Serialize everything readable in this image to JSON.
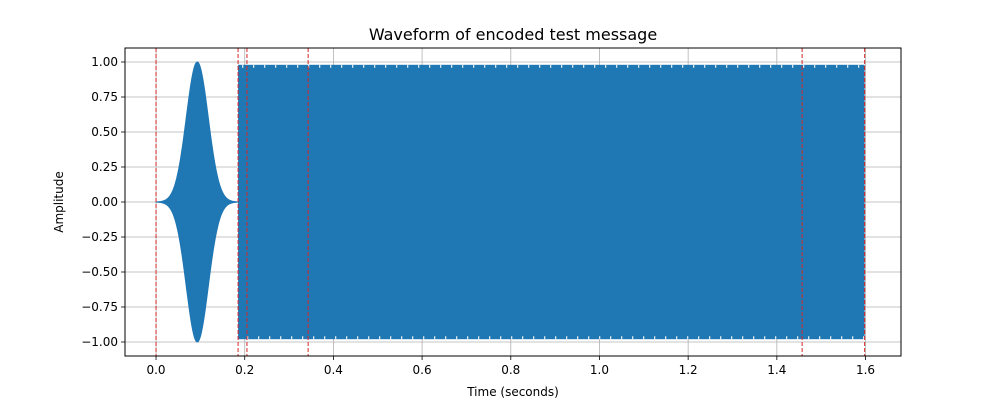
{
  "chart_data": {
    "type": "line",
    "title": "Waveform of encoded test message",
    "xlabel": "Time (seconds)",
    "ylabel": "Amplitude",
    "xlim": [
      -0.07,
      1.68
    ],
    "ylim": [
      -1.1,
      1.1
    ],
    "grid": true,
    "xticks": [
      0.0,
      0.2,
      0.4,
      0.6,
      0.8,
      1.0,
      1.2,
      1.4,
      1.6
    ],
    "xtick_labels": [
      "0.0",
      "0.2",
      "0.4",
      "0.6",
      "0.8",
      "1.0",
      "1.2",
      "1.4",
      "1.6"
    ],
    "yticks": [
      1.0,
      0.75,
      0.5,
      0.25,
      0.0,
      -0.25,
      -0.5,
      -0.75,
      -1.0
    ],
    "ytick_labels": [
      "1.00",
      "0.75",
      "0.50",
      "0.25",
      "0.00",
      "−0.25",
      "−0.50",
      "−0.75",
      "−1.00"
    ],
    "series": [
      {
        "color": "#1f77b4",
        "segments": [
          {
            "shape": "gaussian-burst",
            "start": 0.0,
            "end": 0.185,
            "center": 0.093,
            "peak_amplitude": 1.0
          },
          {
            "shape": "constant-envelope",
            "start": 0.185,
            "end": 1.598,
            "amplitude": 0.98
          }
        ]
      }
    ],
    "markers": {
      "style": "dashed",
      "color": "#d62728",
      "x": [
        0.0,
        0.185,
        0.205,
        0.343,
        1.457,
        1.598
      ]
    }
  }
}
